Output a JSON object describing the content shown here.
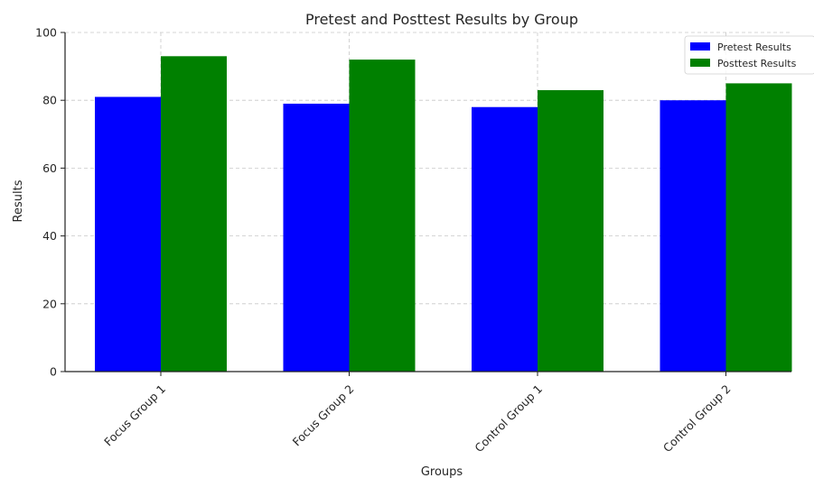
{
  "chart_data": {
    "type": "bar",
    "title": "Pretest and Posttest Results by Group",
    "xlabel": "Groups",
    "ylabel": "Results",
    "categories": [
      "Focus Group 1",
      "Focus Group 2",
      "Control Group 1",
      "Control Group 2"
    ],
    "series": [
      {
        "name": "Pretest Results",
        "values": [
          81,
          79,
          78,
          80
        ],
        "color": "#0000ff"
      },
      {
        "name": "Posttest Results",
        "values": [
          93,
          92,
          83,
          85
        ],
        "color": "#008000"
      }
    ],
    "ylim": [
      0,
      100
    ],
    "yticks": [
      0,
      20,
      40,
      60,
      80,
      100
    ],
    "grid": true,
    "legend_position": "top-right"
  }
}
